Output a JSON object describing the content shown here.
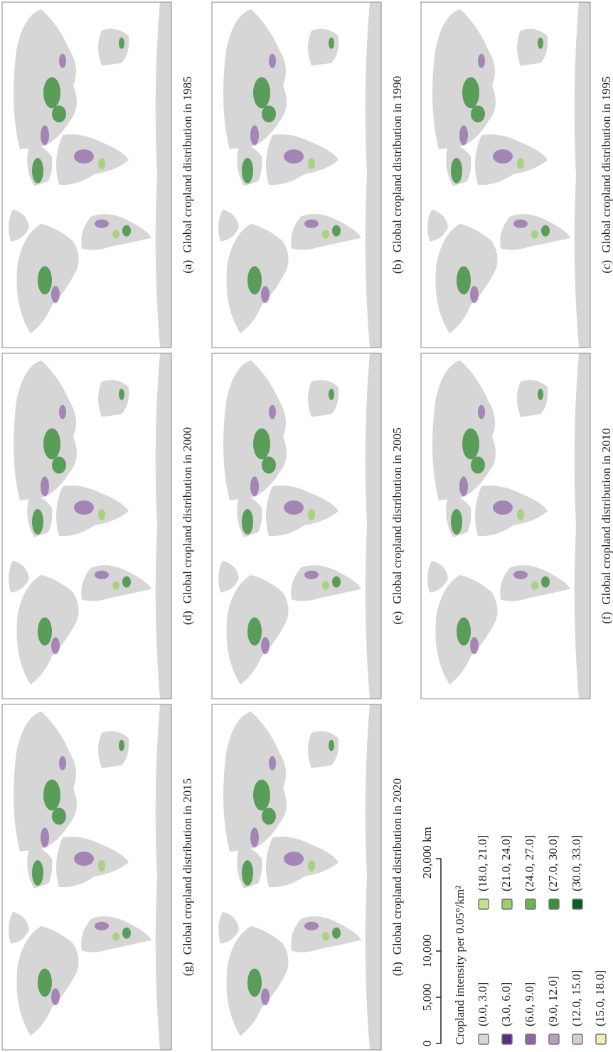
{
  "panels": [
    {
      "label": "(a)",
      "caption": "Global cropland distribution in 1985"
    },
    {
      "label": "(b)",
      "caption": "Global cropland distribution in 1990"
    },
    {
      "label": "(c)",
      "caption": "Global cropland distribution in 1995"
    },
    {
      "label": "(d)",
      "caption": "Global cropland distribution in 2000"
    },
    {
      "label": "(e)",
      "caption": "Global cropland distribution in 2005"
    },
    {
      "label": "(f)",
      "caption": "Global cropland distribution in 2010"
    },
    {
      "label": "(g)",
      "caption": "Global cropland distribution in 2015"
    },
    {
      "label": "(h)",
      "caption": "Global cropland distribution in 2020"
    }
  ],
  "legend": {
    "title": "Cropland intensity per 0.05°/km²",
    "items": [
      {
        "label": "(0.0, 3.0]",
        "color": "#d9d9d9"
      },
      {
        "label": "(3.0, 6.0]",
        "color": "#5a2d82"
      },
      {
        "label": "(6.0, 9.0]",
        "color": "#8e63a8"
      },
      {
        "label": "(9.0, 12.0]",
        "color": "#b79cc4"
      },
      {
        "label": "(12.0, 15.0]",
        "color": "#dccbc2"
      },
      {
        "label": "(15.0, 18.0]",
        "color": "#f1efb4"
      },
      {
        "label": "(18.0, 21.0]",
        "color": "#c6df8e"
      },
      {
        "label": "(21.0, 24.0]",
        "color": "#9dcf6b"
      },
      {
        "label": "(24.0, 27.0]",
        "color": "#6db34f"
      },
      {
        "label": "(27.0, 30.0]",
        "color": "#3b8f3a"
      },
      {
        "label": "(30.0, 33.0]",
        "color": "#0a5c28"
      }
    ]
  },
  "scale_bar": {
    "labels": [
      "0",
      "5,000",
      "10,000",
      "20,000 km"
    ]
  }
}
